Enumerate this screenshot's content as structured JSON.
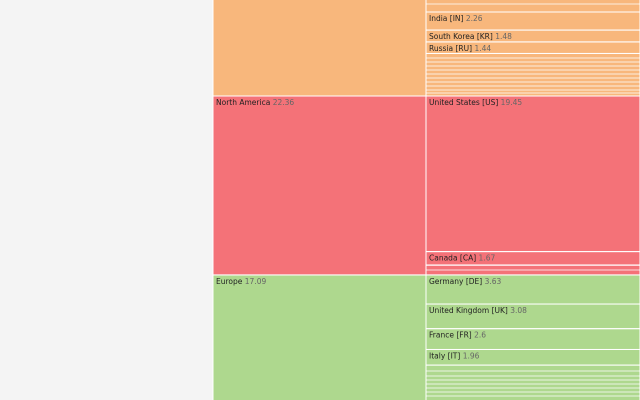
{
  "chart_data": {
    "type": "icicle",
    "groups": [
      {
        "color": "#f8b77c",
        "children": [
          {
            "name": "India [IN]",
            "value": 2.26
          },
          {
            "name": "South Korea [KR]",
            "value": 1.48
          },
          {
            "name": "Russia [RU]",
            "value": 1.44
          }
        ]
      },
      {
        "name": "North America",
        "value": 22.36,
        "color": "#f47278",
        "children": [
          {
            "name": "United States [US]",
            "value": 19.45
          },
          {
            "name": "Canada [CA]",
            "value": 1.67
          }
        ]
      },
      {
        "name": "Europe",
        "value": 17.09,
        "color": "#aed88e",
        "children": [
          {
            "name": "Germany [DE]",
            "value": 3.63
          },
          {
            "name": "United Kingdom [UK]",
            "value": 3.08
          },
          {
            "name": "France [FR]",
            "value": 2.6
          },
          {
            "name": "Italy [IT]",
            "value": 1.96
          }
        ]
      }
    ]
  }
}
